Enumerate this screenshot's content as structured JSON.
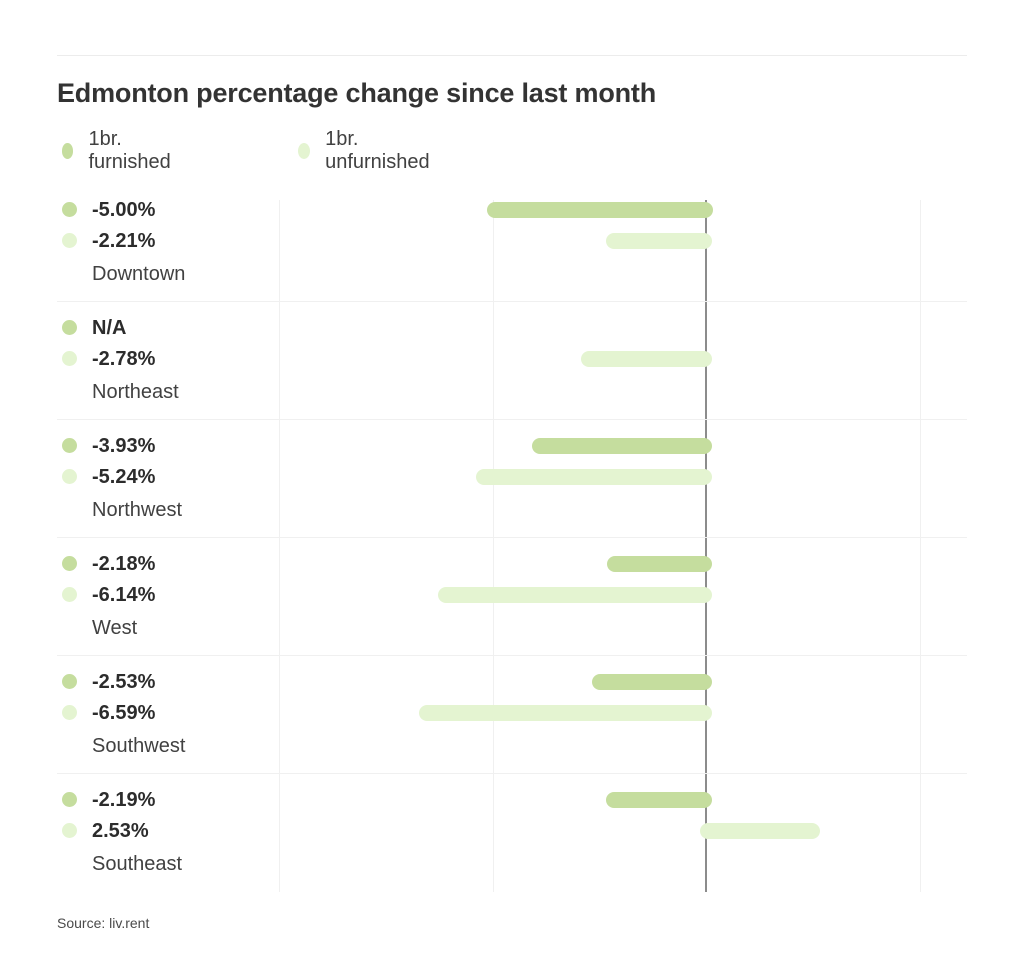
{
  "title": "Edmonton percentage change since last month",
  "source": "Source: liv.rent",
  "legend": {
    "items": [
      {
        "label": "1br. furnished",
        "color": "#c5dd9e"
      },
      {
        "label": "1br. unfurnished",
        "color": "#e4f4d1"
      }
    ]
  },
  "colors": {
    "furnished": "#c5dd9e",
    "unfurnished": "#e4f4d1",
    "zero_line": "#8c8c8c",
    "gridline": "#f0f0f0",
    "title_text": "#333333",
    "value_text": "#2c2c2c"
  },
  "chart_data": {
    "type": "bar",
    "orientation": "horizontal",
    "title": "Edmonton percentage change since last month",
    "categories": [
      "Downtown",
      "Northeast",
      "Northwest",
      "West",
      "Southwest",
      "Southeast"
    ],
    "series": [
      {
        "name": "1br. furnished",
        "color": "#c5dd9e",
        "values": [
          -5.0,
          null,
          -3.93,
          -2.18,
          -2.53,
          -2.19
        ],
        "display": [
          "-5.00%",
          "N/A",
          "-3.93%",
          "-2.18%",
          "-2.53%",
          "-2.19%"
        ]
      },
      {
        "name": "1br. unfurnished",
        "color": "#e4f4d1",
        "values": [
          -2.21,
          -2.78,
          -5.24,
          -6.14,
          -6.59,
          2.53
        ],
        "display": [
          "-2.21%",
          "-2.78%",
          "-5.24%",
          "-6.14%",
          "-6.59%",
          "2.53%"
        ]
      }
    ],
    "xlabel": "",
    "ylabel": "",
    "xlim": [
      -10,
      6.5
    ],
    "gridlines_pct": [
      -10,
      -5,
      5
    ],
    "zero_pct": 0,
    "grid": true,
    "legend_position": "top-left",
    "value_suffix": "%"
  }
}
